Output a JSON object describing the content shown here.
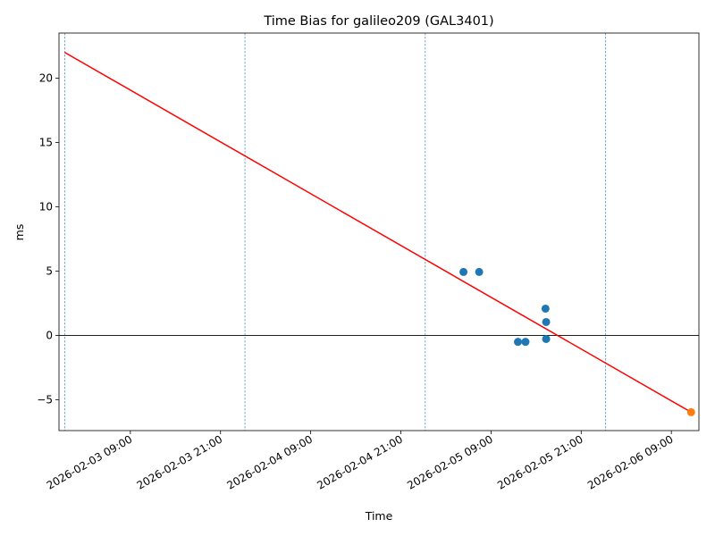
{
  "chart_data": {
    "type": "scatter",
    "title": "Time Bias for galileo209 (GAL3401)",
    "x_label": "Time",
    "y_label": "ms",
    "xlim": [
      "2026-02-02 23:30",
      "2026-02-06 12:40"
    ],
    "xticks": [
      "2026-02-03 09:00",
      "2026-02-03 21:00",
      "2026-02-04 09:00",
      "2026-02-04 21:00",
      "2026-02-05 09:00",
      "2026-02-05 21:00",
      "2026-02-06 09:00"
    ],
    "ylim": [
      -7.4,
      23.5
    ],
    "yticks": [
      {
        "value": -5,
        "label": "−5"
      },
      0,
      5,
      10,
      15,
      20
    ],
    "series": [
      {
        "color": "#1f77b4",
        "x": [
          "2026-02-05 05:20",
          "2026-02-05 07:25",
          "2026-02-05 12:35",
          "2026-02-05 13:35",
          "2026-02-05 16:15",
          "2026-02-05 16:20",
          "2026-02-05 16:20"
        ],
        "values": [
          4.93,
          4.93,
          -0.5,
          -0.5,
          2.08,
          1.04,
          -0.28
        ]
      },
      {
        "color": "#ff7f0e",
        "x": [
          "2026-02-06 11:38"
        ],
        "values": [
          -5.97
        ]
      }
    ],
    "fit_line": {
      "color": "#ff0000",
      "x": [
        "2026-02-03 00:15",
        "2026-02-06 11:38"
      ],
      "values": [
        22.0,
        -5.97
      ]
    },
    "vlines": {
      "color": "#1f77b4",
      "x": [
        "2026-02-03 00:15",
        "2026-02-04 00:15",
        "2026-02-05 00:15",
        "2026-02-06 00:15"
      ]
    },
    "hline": {
      "color": "#000000",
      "value": 0
    }
  }
}
